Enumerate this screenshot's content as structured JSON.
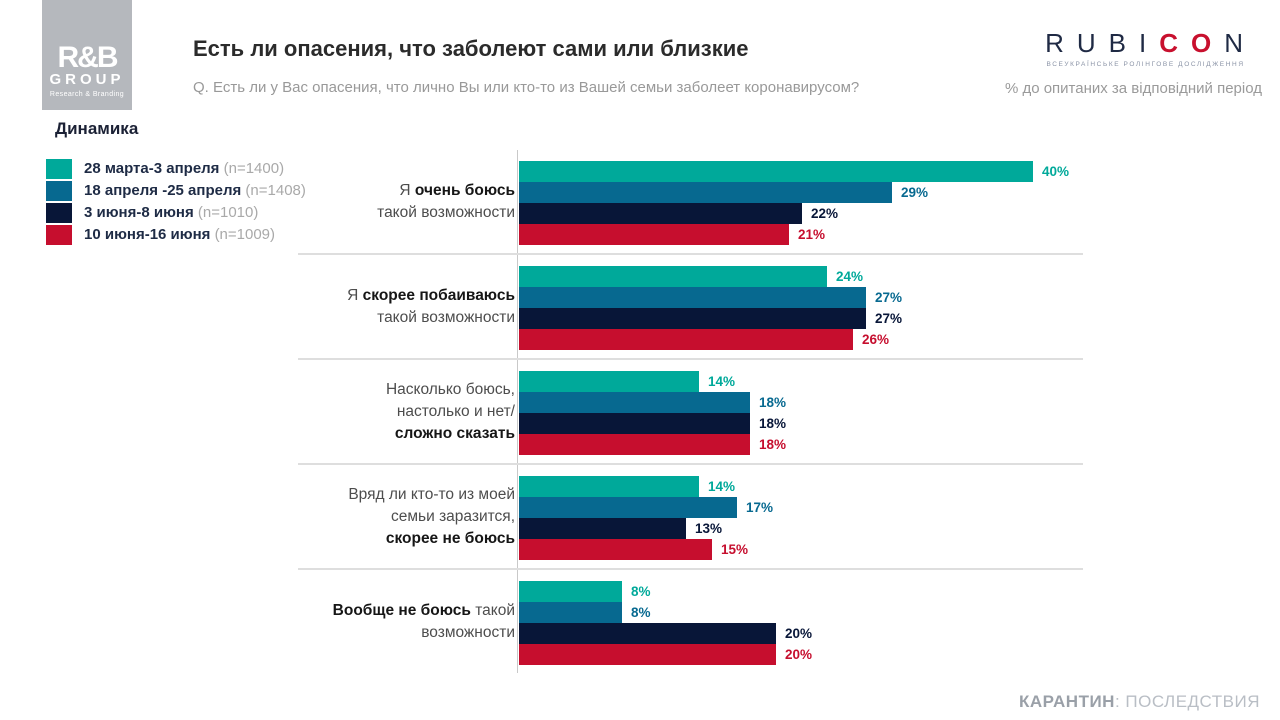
{
  "header": {
    "logo": {
      "line1": "R&B",
      "line2": "GROUP",
      "line3": "Research & Branding"
    },
    "title": "Есть ли опасения, что заболеют сами или близкие",
    "subtitle": "Q. Есть ли у Вас опасения, что лично Вы или кто-то из Вашей семьи заболеет коронавирусом?",
    "unit_note": "% до опитаних за відповідний період",
    "rubicon": {
      "part1": "RUBI",
      "part2": "CO",
      "part3": "N",
      "tagline": "ВСЕУКРАЇНСЬКЕ РОЛІНГОВЕ ДОСЛІДЖЕННЯ"
    }
  },
  "section_label": "Динамика",
  "chart_data": {
    "type": "bar",
    "orientation": "horizontal",
    "unit": "%",
    "title": "Есть ли опасения, что заболеют сами или близкие",
    "legend_position": "top-left",
    "xlim": [
      0,
      44
    ],
    "grid": false,
    "series": [
      {
        "name": "28 марта-3 апреля",
        "n": "(n=1400)",
        "color": "#00a99a",
        "values": [
          40,
          24,
          14,
          14,
          8
        ]
      },
      {
        "name": "18 апреля -25 апреля",
        "n": "(n=1408)",
        "color": "#076990",
        "values": [
          29,
          27,
          18,
          17,
          8
        ]
      },
      {
        "name": "3 июня-8 июня",
        "n": "(n=1010)",
        "color": "#081638",
        "values": [
          22,
          27,
          18,
          13,
          20
        ]
      },
      {
        "name": "10 июня-16 июня",
        "n": "(n=1009)",
        "color": "#c60e2e",
        "values": [
          21,
          26,
          18,
          15,
          20
        ]
      }
    ],
    "categories": [
      {
        "lines": [
          [
            {
              "t": "Я ",
              "b": false
            },
            {
              "t": "очень боюсь",
              "b": true
            }
          ],
          [
            {
              "t": "такой возможности",
              "b": false
            }
          ]
        ]
      },
      {
        "lines": [
          [
            {
              "t": "Я ",
              "b": false
            },
            {
              "t": "скорее побаиваюсь",
              "b": true
            }
          ],
          [
            {
              "t": "такой возможности",
              "b": false
            }
          ]
        ]
      },
      {
        "lines": [
          [
            {
              "t": "Насколько боюсь,",
              "b": false
            }
          ],
          [
            {
              "t": "настолько и нет/",
              "b": false
            }
          ],
          [
            {
              "t": "сложно сказать",
              "b": true
            }
          ]
        ]
      },
      {
        "lines": [
          [
            {
              "t": "Вряд ли кто-то из моей",
              "b": false
            }
          ],
          [
            {
              "t": "семьи заразится,",
              "b": false
            }
          ],
          [
            {
              "t": "скорее не боюсь",
              "b": true
            }
          ]
        ]
      },
      {
        "lines": [
          [
            {
              "t": "Вообще не боюсь",
              "b": true
            },
            {
              "t": " такой",
              "b": false
            }
          ],
          [
            {
              "t": "возможности",
              "b": false
            }
          ]
        ]
      }
    ]
  },
  "footer": {
    "bold": "КАРАНТИН",
    "rest": ": ПОСЛЕДСТВИЯ"
  }
}
